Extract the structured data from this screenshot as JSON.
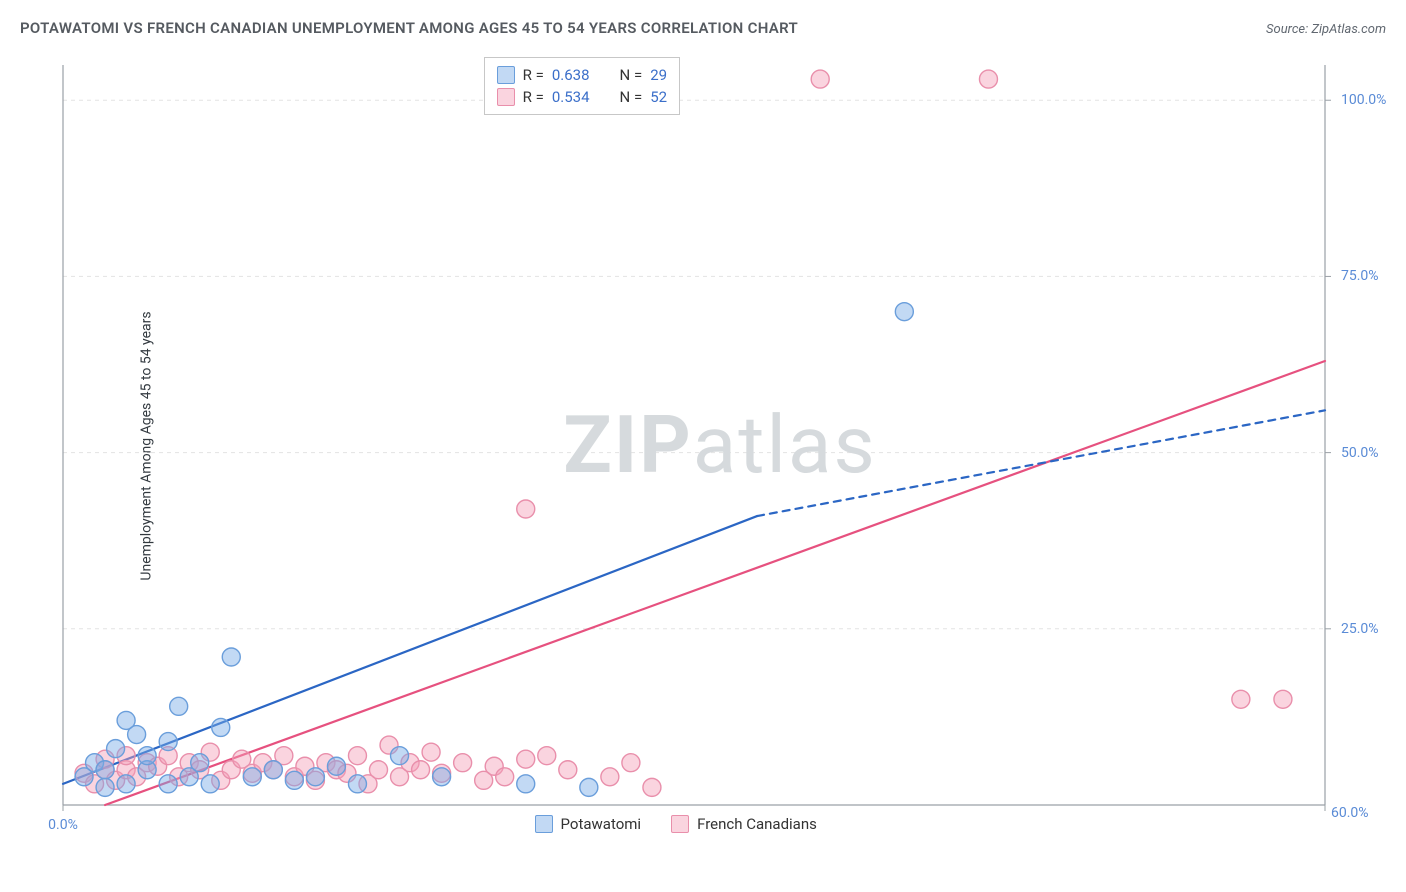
{
  "title": "POTAWATOMI VS FRENCH CANADIAN UNEMPLOYMENT AMONG AGES 45 TO 54 YEARS CORRELATION CHART",
  "source_label": "Source: ",
  "source_value": "ZipAtlas.com",
  "y_axis_label": "Unemployment Among Ages 45 to 54 years",
  "watermark_a": "ZIP",
  "watermark_b": "atlas",
  "chart": {
    "type": "scatter-with-regression",
    "xlim": [
      0,
      60
    ],
    "ylim": [
      0,
      105
    ],
    "x_ticks": [
      {
        "v": 0,
        "l": "0.0%"
      },
      {
        "v": 60,
        "l": "60.0%"
      }
    ],
    "y_ticks": [
      {
        "v": 25,
        "l": "25.0%"
      },
      {
        "v": 50,
        "l": "50.0%"
      },
      {
        "v": 75,
        "l": "75.0%"
      },
      {
        "v": 100,
        "l": "100.0%"
      }
    ],
    "grid_color": "#e3e3e3",
    "axis_color": "#9aa0a6",
    "marker_radius": 9,
    "marker_stroke_width": 1.4,
    "line_width": 2.2
  },
  "series": [
    {
      "key": "potawatomi",
      "label": "Potawatomi",
      "color_fill": "rgba(120,170,230,0.45)",
      "color_stroke": "#6a9edb",
      "line_color": "#2b66c4",
      "R": "0.638",
      "N": "29",
      "reg_solid": [
        [
          0,
          3
        ],
        [
          33,
          41
        ]
      ],
      "reg_dash": [
        [
          33,
          41
        ],
        [
          60,
          56
        ]
      ],
      "points": [
        [
          1,
          4
        ],
        [
          1.5,
          6
        ],
        [
          2,
          2.5
        ],
        [
          2,
          5
        ],
        [
          2.5,
          8
        ],
        [
          3,
          12
        ],
        [
          3,
          3
        ],
        [
          3.5,
          10
        ],
        [
          4,
          5
        ],
        [
          4,
          7
        ],
        [
          5,
          3
        ],
        [
          5,
          9
        ],
        [
          5.5,
          14
        ],
        [
          6,
          4
        ],
        [
          6.5,
          6
        ],
        [
          7,
          3
        ],
        [
          7.5,
          11
        ],
        [
          8,
          21
        ],
        [
          9,
          4
        ],
        [
          10,
          5
        ],
        [
          11,
          3.5
        ],
        [
          12,
          4
        ],
        [
          13,
          5.5
        ],
        [
          14,
          3
        ],
        [
          16,
          7
        ],
        [
          18,
          4
        ],
        [
          22,
          3
        ],
        [
          25,
          2.5
        ],
        [
          40,
          70
        ]
      ]
    },
    {
      "key": "french",
      "label": "French Canadians",
      "color_fill": "rgba(244,160,185,0.45)",
      "color_stroke": "#e98fab",
      "line_color": "#e6517f",
      "R": "0.534",
      "N": "52",
      "reg_solid": [
        [
          2,
          0
        ],
        [
          60,
          63
        ]
      ],
      "reg_dash": null,
      "points": [
        [
          1,
          4.5
        ],
        [
          1.5,
          3
        ],
        [
          2,
          5
        ],
        [
          2,
          6.5
        ],
        [
          2.5,
          3.5
        ],
        [
          3,
          5
        ],
        [
          3,
          7
        ],
        [
          3.5,
          4
        ],
        [
          4,
          6
        ],
        [
          4.5,
          5.5
        ],
        [
          5,
          7
        ],
        [
          5.5,
          4
        ],
        [
          6,
          6
        ],
        [
          6.5,
          5
        ],
        [
          7,
          7.5
        ],
        [
          7.5,
          3.5
        ],
        [
          8,
          5
        ],
        [
          8.5,
          6.5
        ],
        [
          9,
          4.5
        ],
        [
          9.5,
          6
        ],
        [
          10,
          5
        ],
        [
          10.5,
          7
        ],
        [
          11,
          4
        ],
        [
          11.5,
          5.5
        ],
        [
          12,
          3.5
        ],
        [
          12.5,
          6
        ],
        [
          13,
          5
        ],
        [
          13.5,
          4.5
        ],
        [
          14,
          7
        ],
        [
          14.5,
          3
        ],
        [
          15,
          5
        ],
        [
          15.5,
          8.5
        ],
        [
          16,
          4
        ],
        [
          16.5,
          6
        ],
        [
          17,
          5
        ],
        [
          17.5,
          7.5
        ],
        [
          18,
          4.5
        ],
        [
          19,
          6
        ],
        [
          20,
          3.5
        ],
        [
          20.5,
          5.5
        ],
        [
          21,
          4
        ],
        [
          22,
          6.5
        ],
        [
          23,
          7
        ],
        [
          24,
          5
        ],
        [
          26,
          4
        ],
        [
          27,
          6
        ],
        [
          28,
          2.5
        ],
        [
          22,
          42
        ],
        [
          36,
          103
        ],
        [
          44,
          103
        ],
        [
          56,
          15
        ],
        [
          58,
          15
        ]
      ]
    }
  ],
  "corr_box_label_R": "R =",
  "corr_box_label_N": "N ="
}
